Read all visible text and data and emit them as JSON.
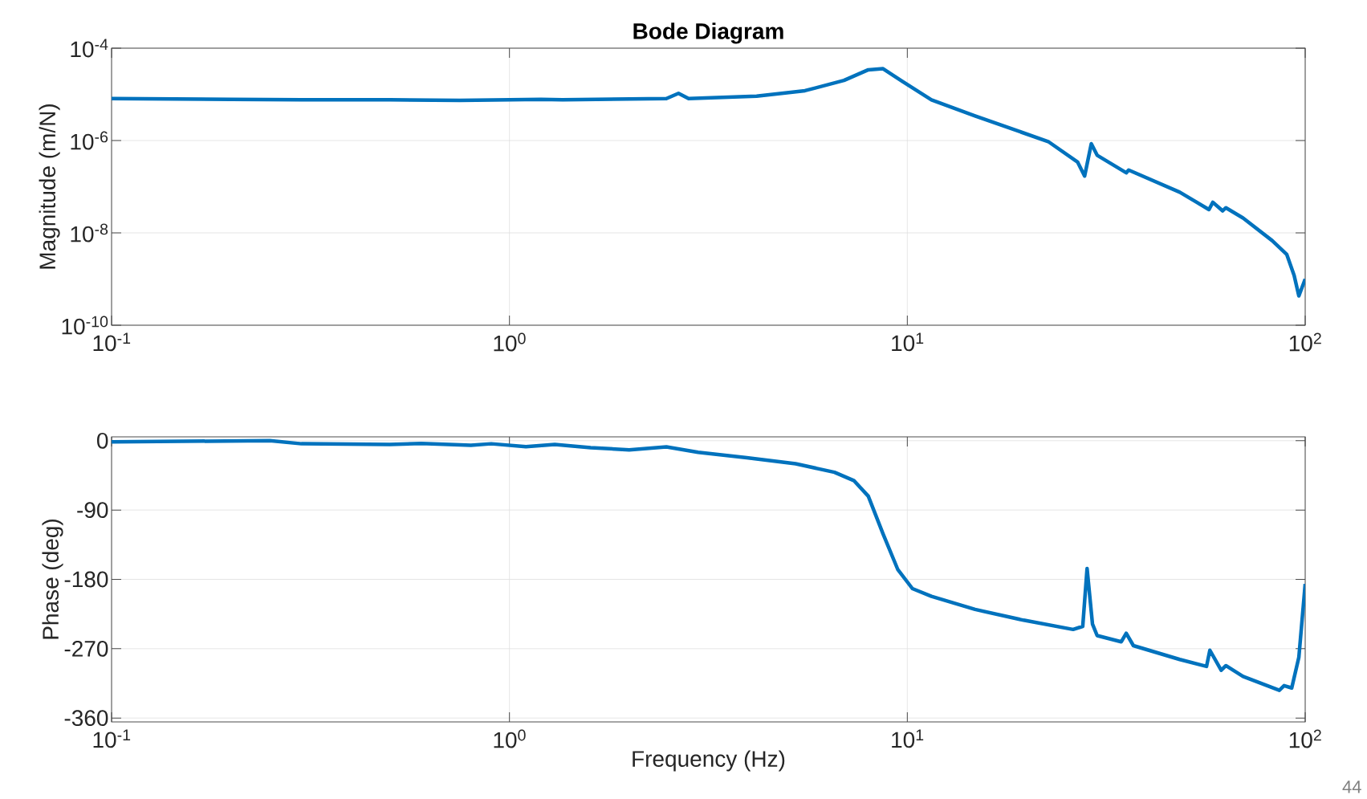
{
  "chart_data": [
    {
      "type": "line",
      "title": "Bode Diagram",
      "ylabel": "Magnitude (m/N)",
      "log": "xy",
      "grid": true,
      "marker": "none",
      "xlim": [
        0.1,
        100
      ],
      "ylim": [
        1e-10,
        0.0001
      ],
      "xticks": [
        {
          "value": 0.1,
          "label": "10$^{-1}$"
        },
        {
          "value": 1,
          "label": "10$^{0}$"
        },
        {
          "value": 10,
          "label": "10$^{1}$"
        },
        {
          "value": 100,
          "label": "10$^{2}$"
        }
      ],
      "yticks": [
        {
          "value": 1e-10,
          "label": "10$^{-10}$"
        },
        {
          "value": 1e-08,
          "label": "10$^{-8}$"
        },
        {
          "value": 1e-06,
          "label": "10$^{-6}$"
        },
        {
          "value": 0.0001,
          "label": "10$^{-4}$"
        }
      ],
      "series": [
        {
          "color": "#0072bd",
          "x": [
            0.1,
            0.2,
            0.3,
            0.5,
            0.75,
            1.0,
            1.2,
            1.36,
            2.48,
            2.66,
            2.82,
            4.18,
            5.53,
            6.93,
            7.98,
            8.69,
            9.72,
            11.5,
            14.8,
            22.6,
            26.8,
            27.9,
            29.0,
            30.0,
            35.5,
            36,
            48.4,
            57.3,
            58.6,
            62.0,
            63.2,
            69.8,
            82.6,
            89.9,
            93.8,
            96.4,
            100
          ],
          "values": [
            8.1e-06,
            7.8e-06,
            7.6e-06,
            7.6e-06,
            7.4e-06,
            7.6e-06,
            7.8e-06,
            7.6e-06,
            8.1e-06,
            1.05e-05,
            8.1e-06,
            9.1e-06,
            1.2e-05,
            2e-05,
            3.4e-05,
            3.6e-05,
            1.9e-05,
            7.6e-06,
            3.4e-06,
            9.5e-07,
            3.4e-07,
            1.7e-07,
            8.5e-07,
            4.8e-07,
            2e-07,
            2.3e-07,
            7.6e-08,
            3.2e-08,
            4.6e-08,
            3e-08,
            3.5e-08,
            2.1e-08,
            6.8e-09,
            3.4e-09,
            1.2e-09,
            4.3e-10,
            1e-09
          ]
        }
      ]
    },
    {
      "type": "line",
      "xlabel": "Frequency (Hz)",
      "ylabel": "Phase (deg)",
      "log": "x",
      "grid": true,
      "marker": "none",
      "xlim": [
        0.1,
        100
      ],
      "ylim": [
        -365,
        5
      ],
      "xticks": [
        {
          "value": 0.1,
          "label": "10$^{-1}$"
        },
        {
          "value": 1,
          "label": "10$^{0}$"
        },
        {
          "value": 10,
          "label": "10$^{1}$"
        },
        {
          "value": 100,
          "label": "10$^{2}$"
        }
      ],
      "yticks": [
        -360,
        -270,
        -180,
        -90,
        0
      ],
      "annotations": [
        "44"
      ],
      "series": [
        {
          "color": "#0072bd",
          "x": [
            0.1,
            0.25,
            0.3,
            0.5,
            0.6,
            0.8,
            0.9,
            1.1,
            1.3,
            1.6,
            2.0,
            2.48,
            2.98,
            3.95,
            5.24,
            6.56,
            7.35,
            7.98,
            8.69,
            9.46,
            10.3,
            11.5,
            14.8,
            19.6,
            26.1,
            27.6,
            28.3,
            29.2,
            30.0,
            34.5,
            35.5,
            37.0,
            48.4,
            56.5,
            57.6,
            61.5,
            63.2,
            69.8,
            86.1,
            88.5,
            92.5,
            96.4,
            100
          ],
          "values": [
            -1.5,
            0,
            -4,
            -5,
            -3.6,
            -6,
            -4,
            -7.8,
            -5,
            -9,
            -12,
            -8,
            -15,
            -22,
            -30,
            -41,
            -52,
            -72,
            -121,
            -167,
            -192,
            -202,
            -219,
            -233,
            -245,
            -241,
            -166,
            -238,
            -253,
            -261,
            -250,
            -266,
            -284,
            -293,
            -272,
            -298,
            -292,
            -306,
            -324,
            -318,
            -321,
            -281,
            -186
          ]
        }
      ]
    }
  ]
}
